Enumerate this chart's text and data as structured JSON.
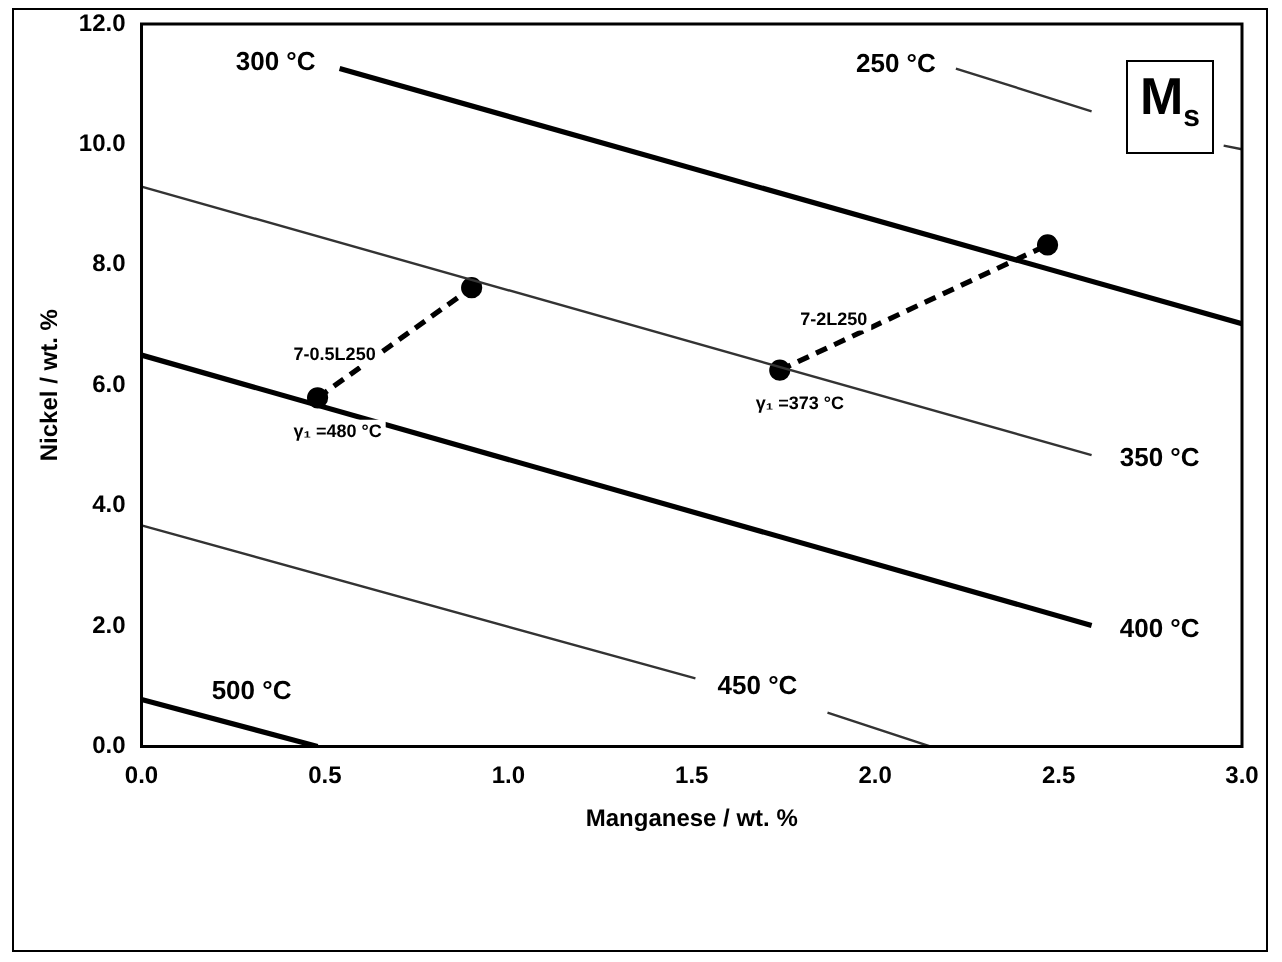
{
  "chart_data": {
    "type": "line",
    "xlabel": "Manganese / wt. %",
    "ylabel": "Nickel / wt. %",
    "xlim": [
      0,
      3
    ],
    "ylim": [
      0,
      12
    ],
    "xticks": [
      {
        "value": 0,
        "label": "0.0"
      },
      {
        "value": 0.5,
        "label": "0.5"
      },
      {
        "value": 1,
        "label": "1.0"
      },
      {
        "value": 1.5,
        "label": "1.5"
      },
      {
        "value": 2,
        "label": "2.0"
      },
      {
        "value": 2.5,
        "label": "2.5"
      },
      {
        "value": 3,
        "label": "3.0"
      }
    ],
    "yticks": [
      {
        "value": 0,
        "label": "0.0"
      },
      {
        "value": 2,
        "label": "2.0"
      },
      {
        "value": 4,
        "label": "4.0"
      },
      {
        "value": 6,
        "label": "6.0"
      },
      {
        "value": 8,
        "label": "8.0"
      },
      {
        "value": 10,
        "label": "10.0"
      },
      {
        "value": 12,
        "label": "12.0"
      }
    ],
    "grid": false,
    "legend": false,
    "marker": "none",
    "line_style": "solid",
    "series": [
      {
        "name": "300 °C",
        "color": "#000000",
        "x": [
          0.54,
          3.0
        ],
        "values": [
          11.26,
          7.02
        ]
      },
      {
        "name": "250 °C",
        "color": "#333333",
        "x": [
          2.22,
          2.59,
          2.75,
          2.95,
          3.0
        ],
        "values": [
          11.26,
          10.55,
          null,
          9.98,
          9.92
        ]
      },
      {
        "name": "350 °C",
        "color": "#333333",
        "x": [
          0,
          2.59
        ],
        "values": [
          9.3,
          4.84
        ]
      },
      {
        "name": "400 °C",
        "color": "#000000",
        "x": [
          0,
          2.59
        ],
        "values": [
          6.5,
          2.01
        ]
      },
      {
        "name": "450 °C",
        "color": "#333333",
        "x": [
          0,
          1.51,
          1.69,
          1.87,
          2.15
        ],
        "values": [
          3.67,
          1.13,
          null,
          0.56,
          0
        ]
      },
      {
        "name": "500 °C",
        "color": "#000000",
        "x": [
          0,
          0.48
        ],
        "values": [
          0.78,
          0
        ]
      },
      {
        "name": "7-0.5L250",
        "color": "#000000",
        "x": [
          0.48,
          0.9
        ],
        "values": [
          5.79,
          7.62
        ],
        "marker": "circle",
        "line_style": "dashed"
      },
      {
        "name": "7-2L250",
        "color": "#000000",
        "x": [
          1.74,
          2.47
        ],
        "values": [
          6.25,
          8.33
        ],
        "marker": "circle",
        "line_style": "dashed"
      }
    ],
    "annotations": [
      {
        "text": "γ₁ =480 °C",
        "x": 0.48,
        "y": 5.79
      },
      {
        "text": "γ₁ =373 °C",
        "x": 1.74,
        "y": 6.25
      },
      "M$_{s}$"
    ]
  }
}
